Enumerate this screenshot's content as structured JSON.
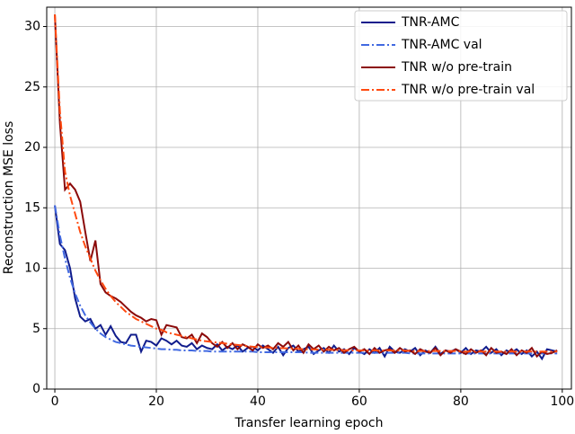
{
  "chart_data": {
    "type": "line",
    "xlabel": "Transfer learning epoch",
    "ylabel": "Reconstruction MSE loss",
    "x": [
      0,
      1,
      2,
      3,
      4,
      5,
      6,
      7,
      8,
      9,
      10,
      11,
      12,
      13,
      14,
      15,
      16,
      17,
      18,
      19,
      20,
      21,
      22,
      23,
      24,
      25,
      26,
      27,
      28,
      29,
      30,
      31,
      32,
      33,
      34,
      35,
      36,
      37,
      38,
      39,
      40,
      41,
      42,
      43,
      44,
      45,
      46,
      47,
      48,
      49,
      50,
      51,
      52,
      53,
      54,
      55,
      56,
      57,
      58,
      59,
      60,
      61,
      62,
      63,
      64,
      65,
      66,
      67,
      68,
      69,
      70,
      71,
      72,
      73,
      74,
      75,
      76,
      77,
      78,
      79,
      80,
      81,
      82,
      83,
      84,
      85,
      86,
      87,
      88,
      89,
      90,
      91,
      92,
      93,
      94,
      95,
      96,
      97,
      98,
      99
    ],
    "xlim": [
      -1.6,
      101.8
    ],
    "xticks": [
      0,
      20,
      40,
      60,
      80,
      100
    ],
    "ylim": [
      0,
      31.6
    ],
    "yticks": [
      0,
      5,
      10,
      15,
      20,
      25,
      30
    ],
    "grid": true,
    "legend": "upper right",
    "series": [
      {
        "name": "TNR-AMC",
        "color": "#101c8c",
        "linestyle": "solid",
        "values": [
          15.2,
          12.0,
          11.5,
          10.0,
          7.5,
          6.0,
          5.6,
          5.8,
          5.0,
          5.3,
          4.5,
          5.2,
          4.4,
          3.9,
          3.8,
          4.5,
          4.5,
          3.1,
          4.0,
          3.9,
          3.6,
          4.2,
          4.0,
          3.7,
          4.0,
          3.6,
          3.5,
          3.8,
          3.3,
          3.6,
          3.4,
          3.3,
          3.7,
          3.2,
          3.5,
          3.3,
          3.6,
          3.1,
          3.4,
          3.5,
          3.2,
          3.6,
          3.3,
          3.0,
          3.5,
          2.8,
          3.4,
          3.6,
          3.1,
          3.3,
          3.5,
          2.9,
          3.2,
          3.4,
          3.0,
          3.6,
          3.1,
          3.3,
          2.9,
          3.4,
          3.1,
          2.9,
          3.3,
          3.0,
          3.4,
          2.7,
          3.5,
          3.1,
          3.0,
          3.3,
          3.1,
          3.4,
          2.8,
          3.2,
          3.0,
          3.5,
          2.9,
          3.2,
          3.1,
          3.3,
          3.0,
          3.4,
          2.9,
          3.2,
          3.1,
          3.5,
          3.0,
          3.3,
          2.8,
          3.2,
          3.0,
          3.3,
          2.9,
          3.2,
          2.7,
          3.1,
          2.5,
          3.3,
          3.2,
          3.1
        ]
      },
      {
        "name": "TNR-AMC val",
        "color": "#4169e1",
        "linestyle": "dashdot",
        "values": [
          15.2,
          12.7,
          10.8,
          9.2,
          7.9,
          6.9,
          6.1,
          5.5,
          5.0,
          4.6,
          4.3,
          4.1,
          3.9,
          3.8,
          3.7,
          3.6,
          3.55,
          3.5,
          3.45,
          3.4,
          3.35,
          3.3,
          3.3,
          3.25,
          3.25,
          3.2,
          3.2,
          3.2,
          3.15,
          3.15,
          3.15,
          3.1,
          3.1,
          3.1,
          3.1,
          3.1,
          3.1,
          3.1,
          3.1,
          3.1,
          3.05,
          3.05,
          3.05,
          3.05,
          3.05,
          3.05,
          3.05,
          3.05,
          3.05,
          3.05,
          3.0,
          3.0,
          3.0,
          3.0,
          3.0,
          3.0,
          3.0,
          3.0,
          3.0,
          3.0,
          3.0,
          3.0,
          3.0,
          3.0,
          3.0,
          3.0,
          3.0,
          3.0,
          3.0,
          3.0,
          2.95,
          2.95,
          2.95,
          2.95,
          2.95,
          2.95,
          2.95,
          2.95,
          2.95,
          2.95,
          2.95,
          2.95,
          2.95,
          2.95,
          2.95,
          2.95,
          2.95,
          2.95,
          2.95,
          2.95,
          2.95,
          2.95,
          2.95,
          2.95,
          2.95,
          2.95,
          2.95,
          2.95,
          2.95,
          2.95
        ]
      },
      {
        "name": "TNR w/o pre-train",
        "color": "#8b0a0a",
        "linestyle": "solid",
        "values": [
          31.0,
          22.0,
          16.5,
          17.0,
          16.5,
          15.5,
          13.0,
          10.6,
          12.3,
          8.7,
          8.0,
          7.7,
          7.5,
          7.2,
          6.8,
          6.4,
          6.1,
          5.9,
          5.6,
          5.8,
          5.7,
          4.5,
          5.3,
          5.2,
          5.1,
          4.3,
          4.2,
          4.5,
          3.8,
          4.6,
          4.3,
          3.8,
          3.5,
          3.9,
          3.4,
          3.8,
          3.3,
          3.7,
          3.5,
          3.2,
          3.7,
          3.4,
          3.6,
          3.3,
          3.8,
          3.5,
          3.9,
          3.2,
          3.6,
          3.0,
          3.7,
          3.3,
          3.6,
          3.1,
          3.5,
          3.2,
          3.4,
          3.0,
          3.3,
          3.5,
          3.1,
          3.3,
          2.9,
          3.4,
          3.0,
          3.2,
          3.3,
          3.0,
          3.4,
          3.1,
          3.2,
          2.9,
          3.3,
          3.1,
          3.0,
          3.4,
          2.8,
          3.2,
          3.0,
          3.3,
          3.1,
          2.9,
          3.3,
          3.0,
          3.2,
          2.8,
          3.4,
          3.0,
          3.1,
          2.9,
          3.3,
          2.8,
          3.2,
          3.0,
          3.4,
          2.7,
          3.1,
          2.9,
          3.0,
          3.2
        ]
      },
      {
        "name": "TNR w/o pre-train val",
        "color": "#ff4a10",
        "linestyle": "dashdot",
        "values": [
          31.0,
          23.0,
          18.0,
          16.0,
          14.5,
          13.0,
          11.8,
          10.8,
          9.8,
          9.0,
          8.3,
          7.7,
          7.2,
          6.8,
          6.4,
          6.1,
          5.8,
          5.6,
          5.4,
          5.2,
          5.0,
          4.9,
          4.7,
          4.6,
          4.5,
          4.4,
          4.3,
          4.2,
          4.1,
          4.0,
          3.95,
          3.9,
          3.85,
          3.8,
          3.75,
          3.7,
          3.65,
          3.6,
          3.55,
          3.5,
          3.48,
          3.46,
          3.44,
          3.42,
          3.4,
          3.38,
          3.36,
          3.34,
          3.32,
          3.3,
          3.29,
          3.28,
          3.27,
          3.26,
          3.25,
          3.24,
          3.23,
          3.22,
          3.21,
          3.2,
          3.2,
          3.2,
          3.2,
          3.2,
          3.2,
          3.2,
          3.2,
          3.2,
          3.2,
          3.2,
          3.15,
          3.15,
          3.15,
          3.15,
          3.15,
          3.15,
          3.15,
          3.15,
          3.15,
          3.15,
          3.1,
          3.1,
          3.1,
          3.1,
          3.1,
          3.1,
          3.1,
          3.1,
          3.1,
          3.1,
          3.1,
          3.1,
          3.1,
          3.1,
          3.1,
          3.1,
          3.1,
          3.1,
          3.1,
          3.1
        ]
      }
    ]
  }
}
